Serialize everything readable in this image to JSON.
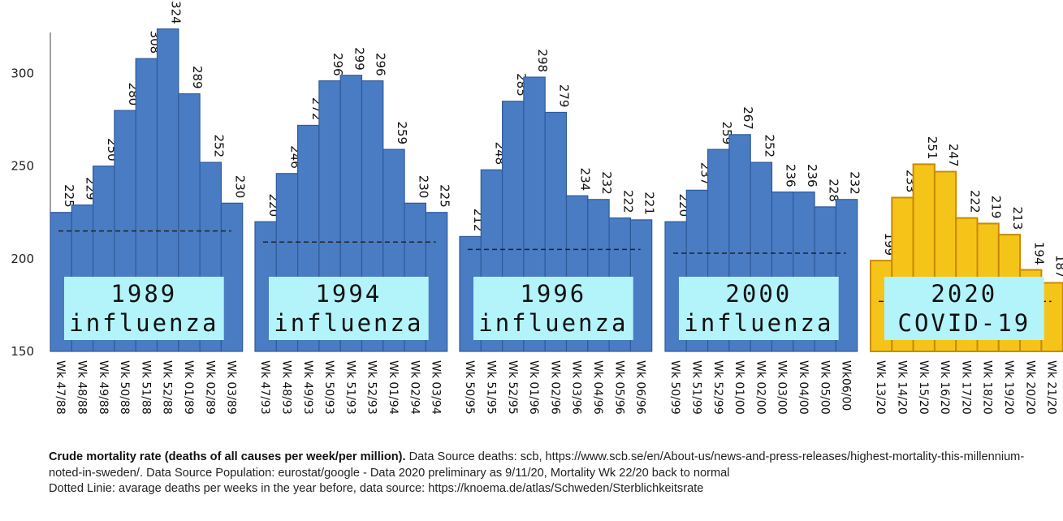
{
  "chart_data": {
    "type": "bar",
    "title": "",
    "xlabel": "",
    "ylabel": "",
    "ylim": [
      150,
      330
    ],
    "yticks": [
      150,
      200,
      250,
      300
    ],
    "grid": false,
    "colors": {
      "influenza": "#4a7cc4",
      "influenza_edge": "#2f5a9a",
      "covid": "#f5c418",
      "covid_edge": "#c98a00",
      "box": "#b3f4fb"
    },
    "groups": [
      {
        "box_line1": "1989",
        "box_line2": "influenza",
        "style": "influenza",
        "categories": [
          "Wk 47/88",
          "Wk 48/88",
          "Wk 49/88",
          "Wk 50/88",
          "Wk 51/88",
          "Wk 52/88",
          "Wk 01/89",
          "Wk 02/89",
          "Wk 03/89"
        ],
        "values": [
          225,
          229,
          250,
          280,
          308,
          324,
          289,
          252,
          230
        ],
        "dotted_avg": 215
      },
      {
        "box_line1": "1994",
        "box_line2": "influenza",
        "style": "influenza",
        "categories": [
          "Wk 47/93",
          "Wk 48/93",
          "Wk 49/93",
          "Wk 50/93",
          "Wk 51/93",
          "Wk 52/93",
          "Wk 01/94",
          "Wk 02/94",
          "Wk 03/94"
        ],
        "values": [
          220,
          246,
          272,
          296,
          299,
          296,
          259,
          230,
          225
        ],
        "dotted_avg": 209
      },
      {
        "box_line1": "1996",
        "box_line2": "influenza",
        "style": "influenza",
        "categories": [
          "Wk 50/95",
          "Wk 51/95",
          "Wk 52/95",
          "Wk 01/96",
          "Wk 02/96",
          "Wk 03/96",
          "Wk 04/96",
          "Wk 05/96",
          "Wk 06/96"
        ],
        "values": [
          212,
          248,
          285,
          298,
          279,
          234,
          232,
          222,
          221
        ],
        "dotted_avg": 205
      },
      {
        "box_line1": "2000",
        "box_line2": "influenza",
        "style": "influenza",
        "categories": [
          "Wk 50/99",
          "Wk 51/99",
          "Wk 52/99",
          "Wk 01/00",
          "Wk 02/00",
          "Wk 03/00",
          "Wk 04/00",
          "Wk 05/00",
          "Wk06/00"
        ],
        "values": [
          220,
          237,
          259,
          267,
          252,
          236,
          236,
          228,
          232
        ],
        "dotted_avg": 203
      },
      {
        "box_line1": "2020",
        "box_line2": "COVID-19",
        "style": "covid",
        "categories": [
          "Wk 13/20",
          "Wk 14/20",
          "Wk 15/20",
          "Wk 16/20",
          "Wk 17/20",
          "Wk 18/20",
          "Wk 19/20",
          "Wk 20/20",
          "Wk 21/20"
        ],
        "values": [
          199,
          233,
          251,
          247,
          222,
          219,
          213,
          194,
          187
        ],
        "dotted_avg": 177
      }
    ]
  },
  "caption": {
    "line1_bold": "Crude mortality rate (deaths of all causes per week/per million).",
    "line1_rest": " Data Source deaths: scb, https://www.scb.se/en/About-us/news-and-press-releases/highest-mortality-this-millennium-noted-in-sweden/. Data Source Population: eurostat/google -  Data 2020 preliminary as 9/11/20, Mortality Wk 22/20 back to normal",
    "line2": "Dotted Linie: avarage deaths per weeks in the year before, data source: https://knoema.de/atlas/Schweden/Sterblichkeitsrate"
  }
}
